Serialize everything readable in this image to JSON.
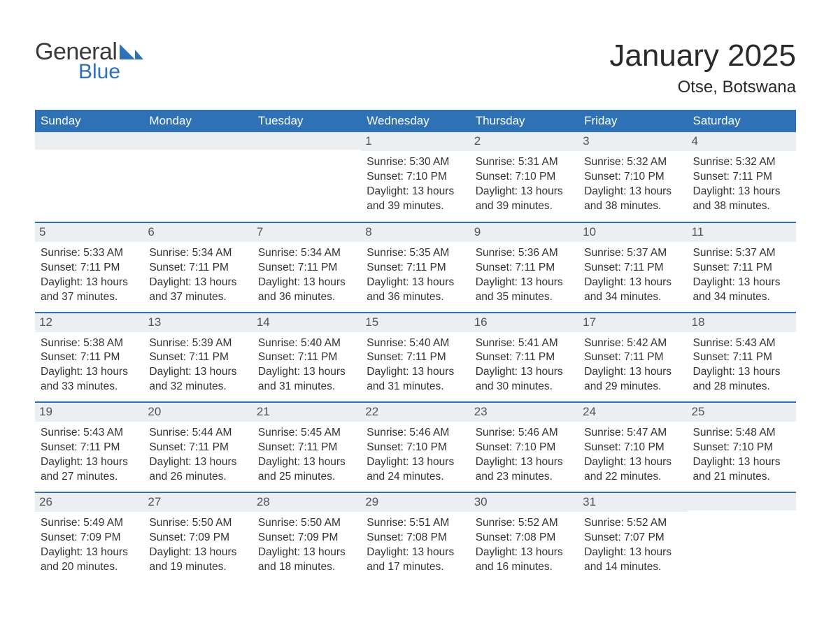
{
  "brand": {
    "logo_text_1": "General",
    "logo_text_2": "Blue",
    "logo_color_1": "#3a3a3a",
    "logo_color_2": "#2e72b5",
    "flag_color": "#2e72b5"
  },
  "title": "January 2025",
  "location": "Otse, Botswana",
  "colors": {
    "header_bg": "#2e72b5",
    "header_text": "#ffffff",
    "daybar_bg": "#eceff1",
    "daybar_text": "#515457",
    "body_text": "#333333",
    "row_border": "#2e72b5",
    "page_bg": "#ffffff"
  },
  "typography": {
    "title_fontsize": 44,
    "location_fontsize": 24,
    "weekday_fontsize": 17,
    "daynum_fontsize": 17,
    "body_fontsize": 15.5,
    "font_family": "Arial"
  },
  "layout": {
    "columns": 7,
    "rows": 5,
    "first_day_column_index": 3
  },
  "weekdays": [
    "Sunday",
    "Monday",
    "Tuesday",
    "Wednesday",
    "Thursday",
    "Friday",
    "Saturday"
  ],
  "days": [
    {
      "n": 1,
      "sunrise": "5:30 AM",
      "sunset": "7:10 PM",
      "daylight": "13 hours and 39 minutes."
    },
    {
      "n": 2,
      "sunrise": "5:31 AM",
      "sunset": "7:10 PM",
      "daylight": "13 hours and 39 minutes."
    },
    {
      "n": 3,
      "sunrise": "5:32 AM",
      "sunset": "7:10 PM",
      "daylight": "13 hours and 38 minutes."
    },
    {
      "n": 4,
      "sunrise": "5:32 AM",
      "sunset": "7:11 PM",
      "daylight": "13 hours and 38 minutes."
    },
    {
      "n": 5,
      "sunrise": "5:33 AM",
      "sunset": "7:11 PM",
      "daylight": "13 hours and 37 minutes."
    },
    {
      "n": 6,
      "sunrise": "5:34 AM",
      "sunset": "7:11 PM",
      "daylight": "13 hours and 37 minutes."
    },
    {
      "n": 7,
      "sunrise": "5:34 AM",
      "sunset": "7:11 PM",
      "daylight": "13 hours and 36 minutes."
    },
    {
      "n": 8,
      "sunrise": "5:35 AM",
      "sunset": "7:11 PM",
      "daylight": "13 hours and 36 minutes."
    },
    {
      "n": 9,
      "sunrise": "5:36 AM",
      "sunset": "7:11 PM",
      "daylight": "13 hours and 35 minutes."
    },
    {
      "n": 10,
      "sunrise": "5:37 AM",
      "sunset": "7:11 PM",
      "daylight": "13 hours and 34 minutes."
    },
    {
      "n": 11,
      "sunrise": "5:37 AM",
      "sunset": "7:11 PM",
      "daylight": "13 hours and 34 minutes."
    },
    {
      "n": 12,
      "sunrise": "5:38 AM",
      "sunset": "7:11 PM",
      "daylight": "13 hours and 33 minutes."
    },
    {
      "n": 13,
      "sunrise": "5:39 AM",
      "sunset": "7:11 PM",
      "daylight": "13 hours and 32 minutes."
    },
    {
      "n": 14,
      "sunrise": "5:40 AM",
      "sunset": "7:11 PM",
      "daylight": "13 hours and 31 minutes."
    },
    {
      "n": 15,
      "sunrise": "5:40 AM",
      "sunset": "7:11 PM",
      "daylight": "13 hours and 31 minutes."
    },
    {
      "n": 16,
      "sunrise": "5:41 AM",
      "sunset": "7:11 PM",
      "daylight": "13 hours and 30 minutes."
    },
    {
      "n": 17,
      "sunrise": "5:42 AM",
      "sunset": "7:11 PM",
      "daylight": "13 hours and 29 minutes."
    },
    {
      "n": 18,
      "sunrise": "5:43 AM",
      "sunset": "7:11 PM",
      "daylight": "13 hours and 28 minutes."
    },
    {
      "n": 19,
      "sunrise": "5:43 AM",
      "sunset": "7:11 PM",
      "daylight": "13 hours and 27 minutes."
    },
    {
      "n": 20,
      "sunrise": "5:44 AM",
      "sunset": "7:11 PM",
      "daylight": "13 hours and 26 minutes."
    },
    {
      "n": 21,
      "sunrise": "5:45 AM",
      "sunset": "7:11 PM",
      "daylight": "13 hours and 25 minutes."
    },
    {
      "n": 22,
      "sunrise": "5:46 AM",
      "sunset": "7:10 PM",
      "daylight": "13 hours and 24 minutes."
    },
    {
      "n": 23,
      "sunrise": "5:46 AM",
      "sunset": "7:10 PM",
      "daylight": "13 hours and 23 minutes."
    },
    {
      "n": 24,
      "sunrise": "5:47 AM",
      "sunset": "7:10 PM",
      "daylight": "13 hours and 22 minutes."
    },
    {
      "n": 25,
      "sunrise": "5:48 AM",
      "sunset": "7:10 PM",
      "daylight": "13 hours and 21 minutes."
    },
    {
      "n": 26,
      "sunrise": "5:49 AM",
      "sunset": "7:09 PM",
      "daylight": "13 hours and 20 minutes."
    },
    {
      "n": 27,
      "sunrise": "5:50 AM",
      "sunset": "7:09 PM",
      "daylight": "13 hours and 19 minutes."
    },
    {
      "n": 28,
      "sunrise": "5:50 AM",
      "sunset": "7:09 PM",
      "daylight": "13 hours and 18 minutes."
    },
    {
      "n": 29,
      "sunrise": "5:51 AM",
      "sunset": "7:08 PM",
      "daylight": "13 hours and 17 minutes."
    },
    {
      "n": 30,
      "sunrise": "5:52 AM",
      "sunset": "7:08 PM",
      "daylight": "13 hours and 16 minutes."
    },
    {
      "n": 31,
      "sunrise": "5:52 AM",
      "sunset": "7:07 PM",
      "daylight": "13 hours and 14 minutes."
    }
  ],
  "labels": {
    "sunrise": "Sunrise:",
    "sunset": "Sunset:",
    "daylight": "Daylight:"
  }
}
